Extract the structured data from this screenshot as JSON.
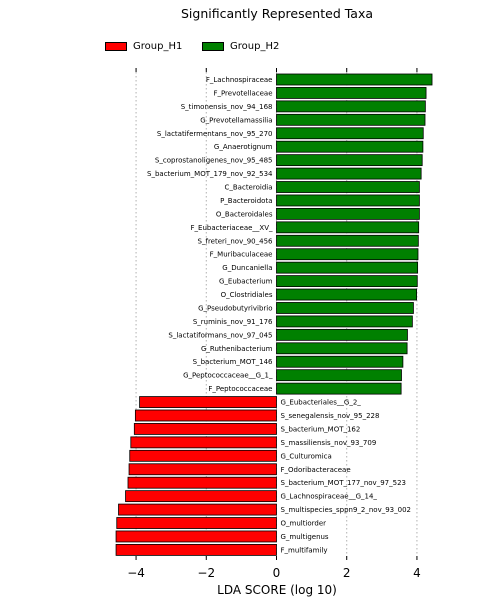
{
  "chart_data": {
    "type": "bar",
    "orientation": "horizontal",
    "title": "Significantly Represented Taxa",
    "xlabel": "LDA SCORE (log 10)",
    "ylabel": "",
    "xlim": [
      -4.6,
      4.6
    ],
    "xticks": [
      "−4",
      "−2",
      "0",
      "2",
      "4"
    ],
    "grid": true,
    "legend_position": "top",
    "legend": [
      {
        "name": "Group_H1",
        "color": "#ff0000"
      },
      {
        "name": "Group_H2",
        "color": "#008000"
      }
    ],
    "bars": [
      {
        "label": "F_Lachnospiraceae",
        "value": 4.43,
        "group": "Group_H2"
      },
      {
        "label": "F_Prevotellaceae",
        "value": 4.26,
        "group": "Group_H2"
      },
      {
        "label": "S_timonensis_nov_94_168",
        "value": 4.24,
        "group": "Group_H2"
      },
      {
        "label": "G_Prevotellamassilia",
        "value": 4.23,
        "group": "Group_H2"
      },
      {
        "label": "S_lactatifermentans_nov_95_270",
        "value": 4.18,
        "group": "Group_H2"
      },
      {
        "label": "G_Anaerotignum",
        "value": 4.17,
        "group": "Group_H2"
      },
      {
        "label": "S_coprostanoligenes_nov_95_485",
        "value": 4.15,
        "group": "Group_H2"
      },
      {
        "label": "S_bacterium_MOT_179_nov_92_534",
        "value": 4.12,
        "group": "Group_H2"
      },
      {
        "label": "C_Bacteroidia",
        "value": 4.07,
        "group": "Group_H2"
      },
      {
        "label": "P_Bacteroidota",
        "value": 4.07,
        "group": "Group_H2"
      },
      {
        "label": "O_Bacteroidales",
        "value": 4.07,
        "group": "Group_H2"
      },
      {
        "label": "F_Eubacteriaceae__XV_",
        "value": 4.05,
        "group": "Group_H2"
      },
      {
        "label": "S_freteri_nov_90_456",
        "value": 4.04,
        "group": "Group_H2"
      },
      {
        "label": "F_Muribaculaceae",
        "value": 4.03,
        "group": "Group_H2"
      },
      {
        "label": "G_Duncaniella",
        "value": 4.02,
        "group": "Group_H2"
      },
      {
        "label": "G_Eubacterium",
        "value": 4.01,
        "group": "Group_H2"
      },
      {
        "label": "O_Clostridiales",
        "value": 3.99,
        "group": "Group_H2"
      },
      {
        "label": "G_Pseudobutyrivibrio",
        "value": 3.9,
        "group": "Group_H2"
      },
      {
        "label": "S_ruminis_nov_91_176",
        "value": 3.87,
        "group": "Group_H2"
      },
      {
        "label": "S_lactatiformans_nov_97_045",
        "value": 3.73,
        "group": "Group_H2"
      },
      {
        "label": "G_Ruthenibacterium",
        "value": 3.72,
        "group": "Group_H2"
      },
      {
        "label": "S_bacterium_MOT_146",
        "value": 3.6,
        "group": "Group_H2"
      },
      {
        "label": "G_Peptococcaceae__G_1_",
        "value": 3.56,
        "group": "Group_H2"
      },
      {
        "label": "F_Peptococcaceae",
        "value": 3.55,
        "group": "Group_H2"
      },
      {
        "label": "G_Eubacteriales__G_2_",
        "value": -3.9,
        "group": "Group_H1"
      },
      {
        "label": "S_senegalensis_nov_95_228",
        "value": -4.02,
        "group": "Group_H1"
      },
      {
        "label": "S_bacterium_MOT_162",
        "value": -4.05,
        "group": "Group_H1"
      },
      {
        "label": "S_massiliensis_nov_93_709",
        "value": -4.15,
        "group": "Group_H1"
      },
      {
        "label": "G_Culturomica",
        "value": -4.18,
        "group": "Group_H1"
      },
      {
        "label": "F_Odoribacteraceae",
        "value": -4.2,
        "group": "Group_H1"
      },
      {
        "label": "S_bacterium_MOT_177_nov_97_523",
        "value": -4.23,
        "group": "Group_H1"
      },
      {
        "label": "G_Lachnospiraceae__G_14_",
        "value": -4.3,
        "group": "Group_H1"
      },
      {
        "label": "S_multispecies_sppn9_2_nov_93_002",
        "value": -4.5,
        "group": "Group_H1"
      },
      {
        "label": "O_multiorder",
        "value": -4.55,
        "group": "Group_H1"
      },
      {
        "label": "G_multigenus",
        "value": -4.57,
        "group": "Group_H1"
      },
      {
        "label": "F_multifamily",
        "value": -4.57,
        "group": "Group_H1"
      }
    ]
  }
}
